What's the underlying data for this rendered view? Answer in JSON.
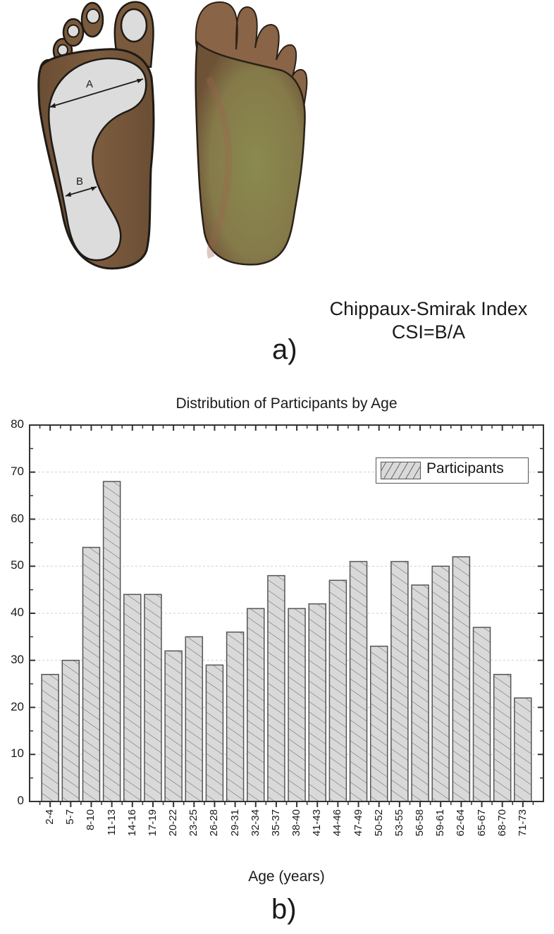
{
  "figure_a": {
    "panel_label": "a)",
    "measure_labels": {
      "A": "A",
      "B": "B"
    },
    "index_title": "Chippaux-Smirak Index",
    "formula": "CSI=B/A",
    "colors": {
      "skin": "#7a5a3c",
      "footprint": "#dcdcdc",
      "sole_green": "#8f8c52",
      "outline": "#1e1a16"
    }
  },
  "figure_b": {
    "panel_label": "b)",
    "legend_label": "Participants",
    "colors": {
      "bar_fill": "#d9d9d9",
      "bar_edge": "#555555",
      "hatch": "#666666",
      "grid": "#cccccc",
      "axis": "#333333"
    }
  },
  "chart_data": {
    "type": "bar",
    "title": "Distribution of Participants by Age",
    "xlabel": "Age (years)",
    "ylabel": "",
    "ylim": [
      0,
      80
    ],
    "yticks": [
      0,
      10,
      20,
      30,
      40,
      50,
      60,
      70,
      80
    ],
    "grid": "horizontal dashed at 10-unit major ticks",
    "legend": {
      "position": "upper right",
      "entries": [
        "Participants"
      ]
    },
    "categories": [
      "2-4",
      "5-7",
      "8-10",
      "11-13",
      "14-16",
      "17-19",
      "20-22",
      "23-25",
      "26-28",
      "29-31",
      "32-34",
      "35-37",
      "38-40",
      "41-43",
      "44-46",
      "47-49",
      "50-52",
      "53-55",
      "56-58",
      "59-61",
      "62-64",
      "65-67",
      "68-70",
      "71-73"
    ],
    "series": [
      {
        "name": "Participants",
        "values": [
          27,
          30,
          54,
          68,
          44,
          44,
          32,
          35,
          29,
          36,
          41,
          48,
          41,
          42,
          47,
          51,
          33,
          51,
          46,
          50,
          52,
          37,
          27,
          22
        ]
      }
    ]
  }
}
